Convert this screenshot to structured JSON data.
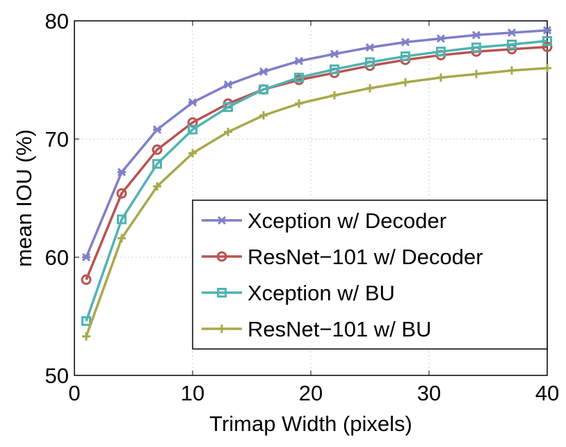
{
  "chart_data": {
    "type": "line",
    "title": "",
    "xlabel": "Trimap Width (pixels)",
    "ylabel": "mean IOU (%)",
    "xlim": [
      0,
      40
    ],
    "ylim": [
      50,
      80
    ],
    "xticks": [
      "0",
      "10",
      "20",
      "30",
      "40"
    ],
    "yticks": [
      "50",
      "60",
      "70",
      "80"
    ],
    "grid": true,
    "legend_position": "lower-right",
    "x": [
      1,
      4,
      7,
      10,
      13,
      16,
      19,
      22,
      25,
      28,
      31,
      34,
      37,
      40
    ],
    "series": [
      {
        "name": "Xception w/ Decoder",
        "color": "#7f7fc8",
        "marker": "x-star",
        "values": [
          60.0,
          67.2,
          70.8,
          73.1,
          74.6,
          75.7,
          76.6,
          77.2,
          77.75,
          78.2,
          78.5,
          78.8,
          79.0,
          79.2
        ]
      },
      {
        "name": "ResNet−101 w/ Decoder",
        "color": "#b85450",
        "marker": "circle",
        "values": [
          58.1,
          65.4,
          69.1,
          71.4,
          73.0,
          74.2,
          75.0,
          75.6,
          76.2,
          76.7,
          77.1,
          77.4,
          77.6,
          77.8
        ]
      },
      {
        "name": "Xception w/ BU",
        "color": "#4fb3b3",
        "marker": "square",
        "values": [
          54.6,
          63.2,
          67.9,
          70.8,
          72.7,
          74.2,
          75.2,
          75.9,
          76.5,
          77.0,
          77.4,
          77.75,
          78.0,
          78.3
        ]
      },
      {
        "name": "ResNet−101 w/ BU",
        "color": "#a8a84a",
        "marker": "plus",
        "values": [
          53.3,
          61.6,
          66.0,
          68.8,
          70.6,
          72.0,
          73.0,
          73.7,
          74.3,
          74.8,
          75.2,
          75.5,
          75.8,
          76.0
        ]
      }
    ]
  }
}
